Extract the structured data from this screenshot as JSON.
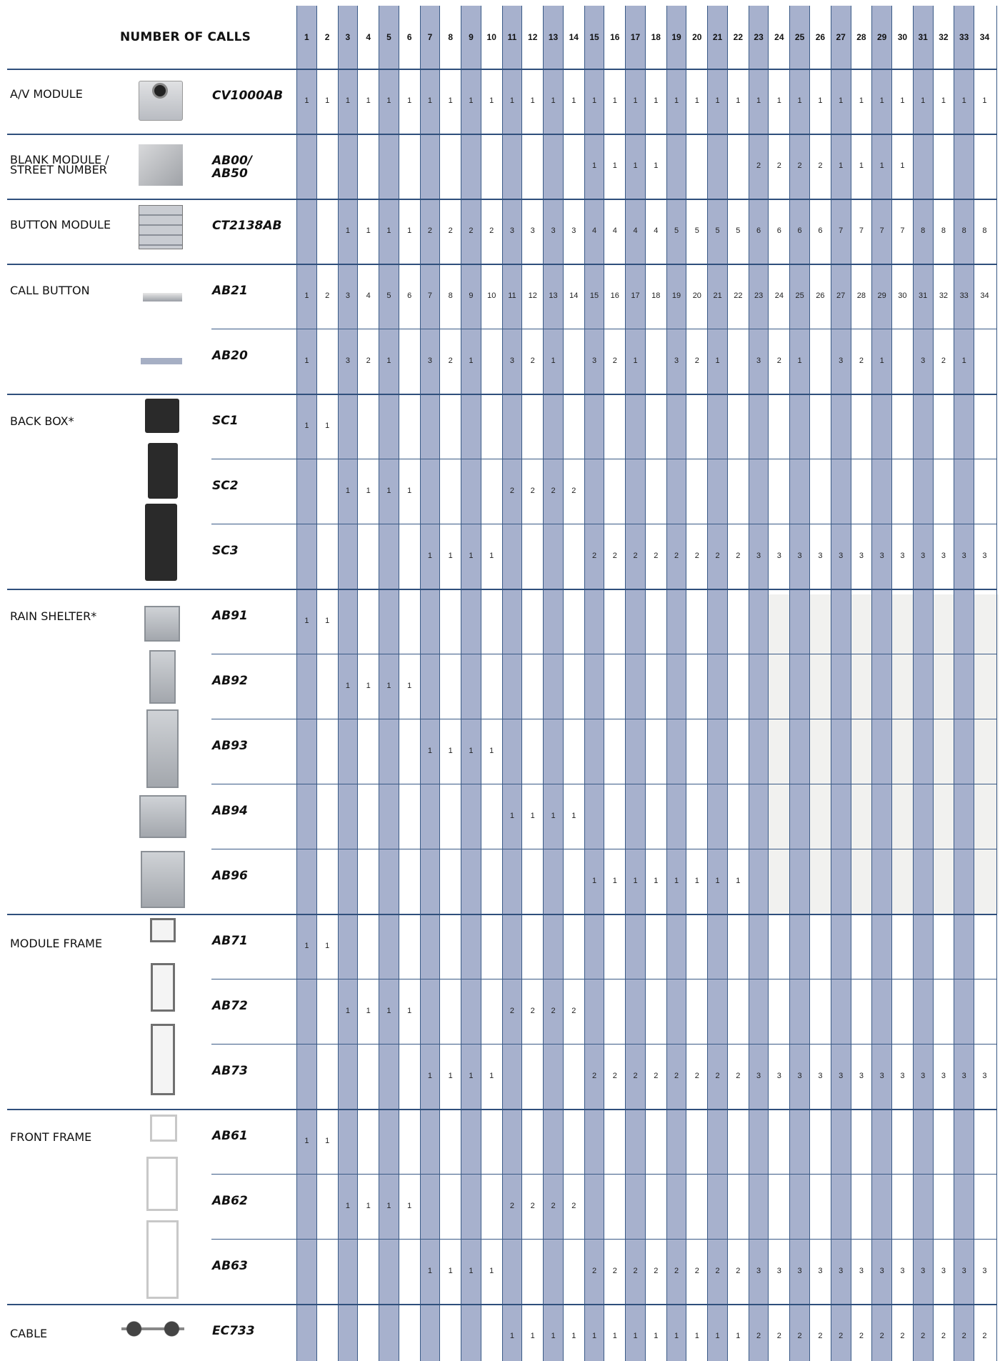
{
  "header_title": "NUMBER OF CALLS",
  "columns": [
    1,
    2,
    3,
    4,
    5,
    6,
    7,
    8,
    9,
    10,
    11,
    12,
    13,
    14,
    15,
    16,
    17,
    18,
    19,
    20,
    21,
    22,
    23,
    24,
    25,
    26,
    27,
    28,
    29,
    30,
    31,
    32,
    33,
    34
  ],
  "groups": [
    {
      "name": "A/V MODULE"
    },
    {
      "name": "BLANK MODULE / STREET NUMBER"
    },
    {
      "name": "BUTTON MODULE"
    },
    {
      "name": "CALL BUTTON"
    },
    {
      "name": "BACK BOX*"
    },
    {
      "name": "RAIN SHELTER*"
    },
    {
      "name": "MODULE FRAME"
    },
    {
      "name": "FRONT FRAME"
    },
    {
      "name": "CABLE"
    }
  ],
  "rows": [
    {
      "code": "CV1000AB",
      "values": [
        "1",
        "1",
        "1",
        "1",
        "1",
        "1",
        "1",
        "1",
        "1",
        "1",
        "1",
        "1",
        "1",
        "1",
        "1",
        "1",
        "1",
        "1",
        "1",
        "1",
        "1",
        "1",
        "1",
        "1",
        "1",
        "1",
        "1",
        "1",
        "1",
        "1",
        "1",
        "1",
        "1",
        "1"
      ]
    },
    {
      "code": "AB00/ AB50",
      "values": [
        "",
        "",
        "",
        "",
        "",
        "",
        "",
        "",
        "",
        "",
        "",
        "",
        "",
        "",
        "1",
        "1",
        "1",
        "1",
        "",
        "",
        "",
        "",
        "2",
        "2",
        "2",
        "2",
        "1",
        "1",
        "1",
        "1",
        "",
        "",
        "",
        ""
      ]
    },
    {
      "code": "CT2138AB",
      "values": [
        "",
        "",
        "1",
        "1",
        "1",
        "1",
        "2",
        "2",
        "2",
        "2",
        "3",
        "3",
        "3",
        "3",
        "4",
        "4",
        "4",
        "4",
        "5",
        "5",
        "5",
        "5",
        "6",
        "6",
        "6",
        "6",
        "7",
        "7",
        "7",
        "7",
        "8",
        "8",
        "8",
        "8"
      ]
    },
    {
      "code": "AB21",
      "values": [
        "1",
        "2",
        "3",
        "4",
        "5",
        "6",
        "7",
        "8",
        "9",
        "10",
        "11",
        "12",
        "13",
        "14",
        "15",
        "16",
        "17",
        "18",
        "19",
        "20",
        "21",
        "22",
        "23",
        "24",
        "25",
        "26",
        "27",
        "28",
        "29",
        "30",
        "31",
        "32",
        "33",
        "34"
      ]
    },
    {
      "code": "AB20",
      "values": [
        "1",
        "",
        "3",
        "2",
        "1",
        "",
        "3",
        "2",
        "1",
        "",
        "3",
        "2",
        "1",
        "",
        "3",
        "2",
        "1",
        "",
        "3",
        "2",
        "1",
        "",
        "3",
        "2",
        "1",
        "",
        "3",
        "2",
        "1",
        "",
        "3",
        "2",
        "1",
        ""
      ]
    },
    {
      "code": "SC1",
      "values": [
        "1",
        "1",
        "",
        "",
        "",
        "",
        "",
        "",
        "",
        "",
        "",
        "",
        "",
        "",
        "",
        "",
        "",
        "",
        "",
        "",
        "",
        "",
        "",
        "",
        "",
        "",
        "",
        "",
        "",
        "",
        "",
        "",
        "",
        ""
      ]
    },
    {
      "code": "SC2",
      "values": [
        "",
        "",
        "1",
        "1",
        "1",
        "1",
        "",
        "",
        "",
        "",
        "2",
        "2",
        "2",
        "2",
        "",
        "",
        "",
        "",
        "",
        "",
        "",
        "",
        "",
        "",
        "",
        "",
        "",
        "",
        "",
        "",
        "",
        "",
        "",
        ""
      ]
    },
    {
      "code": "SC3",
      "values": [
        "",
        "",
        "",
        "",
        "",
        "",
        "1",
        "1",
        "1",
        "1",
        "",
        "",
        "",
        "",
        "2",
        "2",
        "2",
        "2",
        "2",
        "2",
        "2",
        "2",
        "3",
        "3",
        "3",
        "3",
        "3",
        "3",
        "3",
        "3",
        "3",
        "3",
        "3",
        "3"
      ]
    },
    {
      "code": "AB91",
      "values": [
        "1",
        "1",
        "",
        "",
        "",
        "",
        "",
        "",
        "",
        "",
        "",
        "",
        "",
        "",
        "",
        "",
        "",
        "",
        "",
        "",
        "",
        "",
        "",
        "",
        "",
        "",
        "",
        "",
        "",
        "",
        "",
        "",
        "",
        ""
      ]
    },
    {
      "code": "AB92",
      "values": [
        "",
        "",
        "1",
        "1",
        "1",
        "1",
        "",
        "",
        "",
        "",
        "",
        "",
        "",
        "",
        "",
        "",
        "",
        "",
        "",
        "",
        "",
        "",
        "",
        "",
        "",
        "",
        "",
        "",
        "",
        "",
        "",
        "",
        "",
        ""
      ]
    },
    {
      "code": "AB93",
      "values": [
        "",
        "",
        "",
        "",
        "",
        "",
        "1",
        "1",
        "1",
        "1",
        "",
        "",
        "",
        "",
        "",
        "",
        "",
        "",
        "",
        "",
        "",
        "",
        "",
        "",
        "",
        "",
        "",
        "",
        "",
        "",
        "",
        "",
        "",
        ""
      ]
    },
    {
      "code": "AB94",
      "values": [
        "",
        "",
        "",
        "",
        "",
        "",
        "",
        "",
        "",
        "",
        "1",
        "1",
        "1",
        "1",
        "",
        "",
        "",
        "",
        "",
        "",
        "",
        "",
        "",
        "",
        "",
        "",
        "",
        "",
        "",
        "",
        "",
        "",
        "",
        ""
      ]
    },
    {
      "code": "AB96",
      "values": [
        "",
        "",
        "",
        "",
        "",
        "",
        "",
        "",
        "",
        "",
        "",
        "",
        "",
        "",
        "1",
        "1",
        "1",
        "1",
        "1",
        "1",
        "1",
        "1",
        "",
        "",
        "",
        "",
        "",
        "",
        "",
        "",
        "",
        "",
        "",
        ""
      ]
    },
    {
      "code": "AB71",
      "values": [
        "1",
        "1",
        "",
        "",
        "",
        "",
        "",
        "",
        "",
        "",
        "",
        "",
        "",
        "",
        "",
        "",
        "",
        "",
        "",
        "",
        "",
        "",
        "",
        "",
        "",
        "",
        "",
        "",
        "",
        "",
        "",
        "",
        "",
        ""
      ]
    },
    {
      "code": "AB72",
      "values": [
        "",
        "",
        "1",
        "1",
        "1",
        "1",
        "",
        "",
        "",
        "",
        "2",
        "2",
        "2",
        "2",
        "",
        "",
        "",
        "",
        "",
        "",
        "",
        "",
        "",
        "",
        "",
        "",
        "",
        "",
        "",
        "",
        "",
        "",
        "",
        ""
      ]
    },
    {
      "code": "AB73",
      "values": [
        "",
        "",
        "",
        "",
        "",
        "",
        "1",
        "1",
        "1",
        "1",
        "",
        "",
        "",
        "",
        "2",
        "2",
        "2",
        "2",
        "2",
        "2",
        "2",
        "2",
        "3",
        "3",
        "3",
        "3",
        "3",
        "3",
        "3",
        "3",
        "3",
        "3",
        "3",
        "3"
      ]
    },
    {
      "code": "AB61",
      "values": [
        "1",
        "1",
        "",
        "",
        "",
        "",
        "",
        "",
        "",
        "",
        "",
        "",
        "",
        "",
        "",
        "",
        "",
        "",
        "",
        "",
        "",
        "",
        "",
        "",
        "",
        "",
        "",
        "",
        "",
        "",
        "",
        "",
        "",
        ""
      ]
    },
    {
      "code": "AB62",
      "values": [
        "",
        "",
        "1",
        "1",
        "1",
        "1",
        "",
        "",
        "",
        "",
        "2",
        "2",
        "2",
        "2",
        "",
        "",
        "",
        "",
        "",
        "",
        "",
        "",
        "",
        "",
        "",
        "",
        "",
        "",
        "",
        "",
        "",
        "",
        "",
        ""
      ]
    },
    {
      "code": "AB63",
      "values": [
        "",
        "",
        "",
        "",
        "",
        "",
        "1",
        "1",
        "1",
        "1",
        "",
        "",
        "",
        "",
        "2",
        "2",
        "2",
        "2",
        "2",
        "2",
        "2",
        "2",
        "3",
        "3",
        "3",
        "3",
        "3",
        "3",
        "3",
        "3",
        "3",
        "3",
        "3",
        "3"
      ]
    },
    {
      "code": "EC733",
      "values": [
        "",
        "",
        "",
        "",
        "",
        "",
        "",
        "",
        "",
        "",
        "1",
        "1",
        "1",
        "1",
        "1",
        "1",
        "1",
        "1",
        "1",
        "1",
        "1",
        "1",
        "2",
        "2",
        "2",
        "2",
        "2",
        "2",
        "2",
        "2",
        "2",
        "2",
        "2",
        "2"
      ]
    }
  ],
  "colors": {
    "stripe": "#a7b1cd",
    "line": "#3a5a86",
    "shade": "#f1f1ef"
  }
}
